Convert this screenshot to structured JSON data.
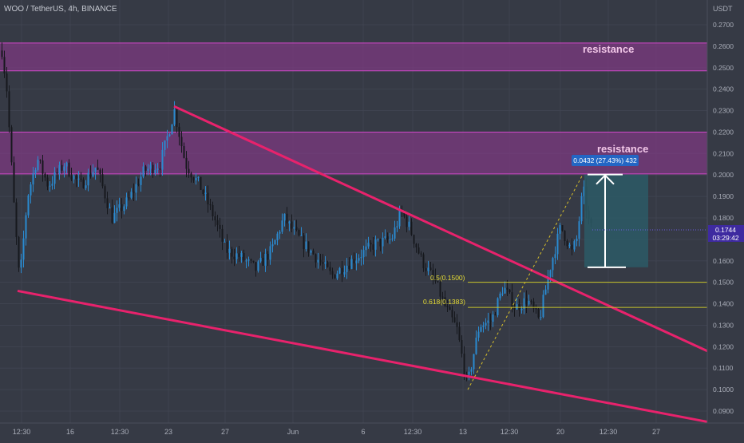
{
  "header": {
    "title": "WOO / TetherUS, 4h, BINANCE"
  },
  "price_axis": {
    "unit": "USDT",
    "ticks": [
      "0.2700",
      "0.2600",
      "0.2500",
      "0.2400",
      "0.2300",
      "0.2200",
      "0.2100",
      "0.2000",
      "0.1900",
      "0.1800",
      "0.1700",
      "0.1600",
      "0.1500",
      "0.1400",
      "0.1300",
      "0.1200",
      "0.1100",
      "0.1000",
      "0.0900"
    ],
    "last_price": "0.1744",
    "countdown": "03:29:42"
  },
  "time_axis": {
    "labels": [
      "12:30",
      "16",
      "12:30",
      "23",
      "27",
      "Jun",
      "6",
      "12:30",
      "13",
      "12:30",
      "20",
      "12:30",
      "27"
    ]
  },
  "annotations": {
    "resistance_top": "resistance",
    "resistance_mid": "resistance",
    "fib_05": "0.5(0.1500)",
    "fib_0618": "0.618(0.1383)",
    "measure": "0.0432 (27.43%) 432"
  },
  "colors": {
    "background": "#363a45",
    "grid": "#3f4350",
    "candle_up": "#2a8ad0",
    "candle_down": "#16181d",
    "zone_fill": "#7c3a80",
    "zone_border": "#d048c8",
    "trendline": "#e8226c",
    "fib_line": "#c9c52a",
    "fib_text": "#e6dc34",
    "measure_box": "#2b5b66",
    "measure_label": "#2366c4",
    "price_badge": "#3e2aa0",
    "axis_text": "#a9adb8",
    "resistance_text": "#f2c7e8"
  },
  "chart_data": {
    "type": "candlestick",
    "scale": "linear",
    "ylim": [
      0.085,
      0.275
    ],
    "zones": [
      {
        "label": "resistance",
        "from": 0.2485,
        "to": 0.2615
      },
      {
        "label": "resistance",
        "from": 0.2005,
        "to": 0.22
      }
    ],
    "trendlines": [
      {
        "name": "upper",
        "points": [
          [
            "May 23 4h",
            0.232
          ],
          [
            "Jun 27",
            0.118
          ]
        ]
      },
      {
        "name": "lower",
        "points": [
          [
            "May 12",
            0.146
          ],
          [
            "Jun 30",
            0.085
          ]
        ]
      }
    ],
    "fib_levels": [
      {
        "label": "0.5(0.1500)",
        "price": 0.15
      },
      {
        "label": "0.618(0.1383)",
        "price": 0.1383
      }
    ],
    "measurement": {
      "from": 0.157,
      "to": 0.2002,
      "change": "0.0432 (27.43%) 432"
    },
    "last_price": 0.1744,
    "key_prices": [
      {
        "time": "May 11",
        "price": 0.261
      },
      {
        "time": "May 12",
        "price": 0.146
      },
      {
        "time": "May 23",
        "price": 0.232
      },
      {
        "time": "Jun 8",
        "price": 0.186
      },
      {
        "time": "Jun 13",
        "price": 0.1005
      },
      {
        "time": "Jun 21",
        "price": 0.2002
      },
      {
        "time": "Jun 22",
        "price": 0.1744
      }
    ]
  }
}
